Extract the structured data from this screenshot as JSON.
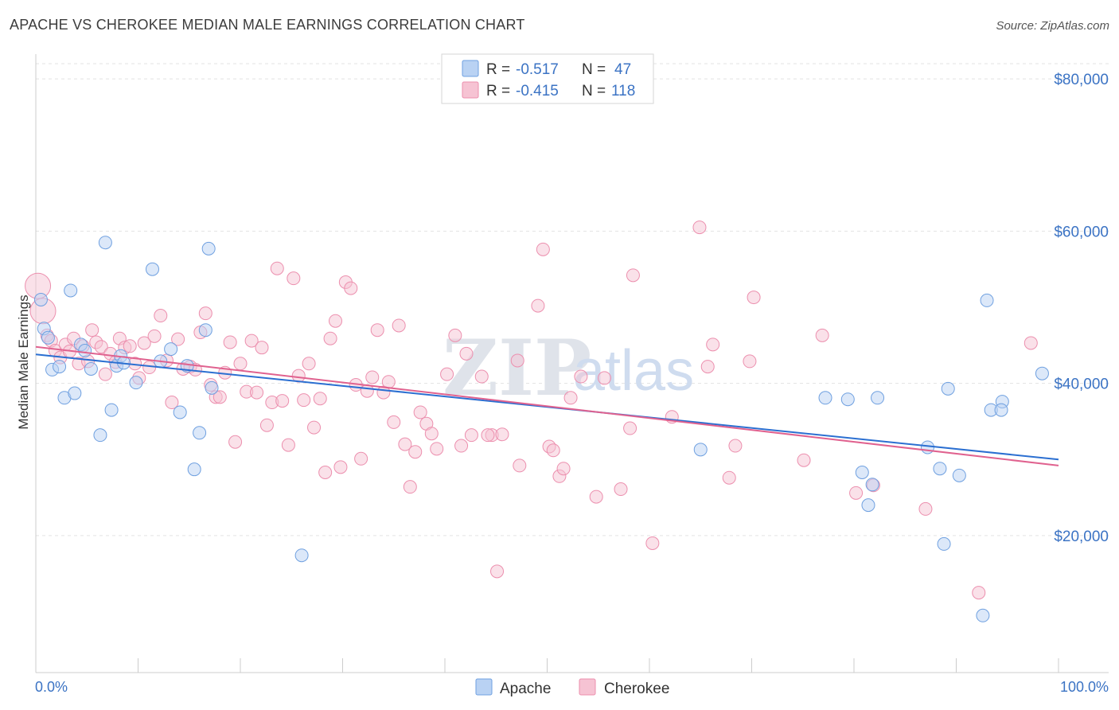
{
  "title": "APACHE VS CHEROKEE MEDIAN MALE EARNINGS CORRELATION CHART",
  "source": "Source: ZipAtlas.com",
  "watermark": {
    "part1": "ZIP",
    "part2": "atlas"
  },
  "colors": {
    "apache": "#6fa0e0",
    "apache_fill": "#b9d2f3",
    "apache_line": "#2b6fd1",
    "cherokee": "#ec8fae",
    "cherokee_fill": "#f6c3d3",
    "cherokee_line": "#e0628f",
    "tick": "#3b73c4"
  },
  "legend": {
    "rows": [
      {
        "r_label": "R =",
        "r_value": "-0.517",
        "n_label": "N =",
        "n_value": "47"
      },
      {
        "r_label": "R =",
        "r_value": "-0.415",
        "n_label": "N =",
        "n_value": "118"
      }
    ]
  },
  "bottom_legend": [
    "Apache",
    "Cherokee"
  ],
  "chart_data": {
    "type": "scatter",
    "title": "APACHE VS CHEROKEE MEDIAN MALE EARNINGS CORRELATION CHART",
    "xlabel": "",
    "ylabel": "Median Male Earnings",
    "xlim": [
      0,
      100
    ],
    "ylim": [
      2000,
      82000
    ],
    "x_tick_labels": [
      "0.0%",
      "100.0%"
    ],
    "y_ticks": [
      20000,
      40000,
      60000,
      80000
    ],
    "y_tick_labels": [
      "$20,000",
      "$40,000",
      "$60,000",
      "$80,000"
    ],
    "grid": true,
    "legend_position": "top-center",
    "series": [
      {
        "name": "Apache",
        "trend": {
          "x": [
            0,
            100
          ],
          "y": [
            43800,
            30000
          ]
        },
        "points": [
          [
            0.5,
            51000
          ],
          [
            0.8,
            47200
          ],
          [
            1.2,
            46000
          ],
          [
            1.6,
            41800
          ],
          [
            2.3,
            42200
          ],
          [
            2.8,
            38100
          ],
          [
            3.4,
            52200
          ],
          [
            3.8,
            38700
          ],
          [
            4.4,
            45100
          ],
          [
            4.8,
            44300
          ],
          [
            5.4,
            41900
          ],
          [
            6.3,
            33200
          ],
          [
            6.8,
            58500
          ],
          [
            7.4,
            36500
          ],
          [
            7.9,
            42300
          ],
          [
            8.3,
            43600
          ],
          [
            8.6,
            42700
          ],
          [
            9.8,
            40100
          ],
          [
            11.4,
            55000
          ],
          [
            12.2,
            42900
          ],
          [
            13.2,
            44500
          ],
          [
            14.1,
            36200
          ],
          [
            14.8,
            42300
          ],
          [
            15.5,
            28700
          ],
          [
            16.0,
            33500
          ],
          [
            16.6,
            47000
          ],
          [
            16.9,
            57700
          ],
          [
            17.2,
            39400
          ],
          [
            26.0,
            17400
          ],
          [
            65.0,
            31300
          ],
          [
            77.2,
            38100
          ],
          [
            79.4,
            37900
          ],
          [
            80.8,
            28300
          ],
          [
            81.4,
            24000
          ],
          [
            81.8,
            26700
          ],
          [
            82.3,
            38100
          ],
          [
            87.2,
            31600
          ],
          [
            88.4,
            28800
          ],
          [
            88.8,
            18900
          ],
          [
            89.2,
            39300
          ],
          [
            90.3,
            27900
          ],
          [
            92.6,
            9500
          ],
          [
            93.0,
            50900
          ],
          [
            93.4,
            36500
          ],
          [
            94.5,
            37600
          ],
          [
            98.4,
            41300
          ],
          [
            94.4,
            36500
          ]
        ]
      },
      {
        "name": "Cherokee",
        "trend": {
          "x": [
            0,
            100
          ],
          "y": [
            44800,
            29200
          ]
        },
        "points": [
          [
            0.2,
            52800
          ],
          [
            0.7,
            49500
          ],
          [
            1.1,
            46300
          ],
          [
            1.5,
            45600
          ],
          [
            1.9,
            44300
          ],
          [
            2.4,
            43400
          ],
          [
            2.9,
            45100
          ],
          [
            3.3,
            44200
          ],
          [
            3.7,
            45900
          ],
          [
            4.2,
            42600
          ],
          [
            4.6,
            44900
          ],
          [
            5.1,
            42900
          ],
          [
            5.5,
            47000
          ],
          [
            5.9,
            45400
          ],
          [
            6.4,
            44800
          ],
          [
            6.8,
            41200
          ],
          [
            7.3,
            43900
          ],
          [
            7.8,
            42800
          ],
          [
            8.2,
            45900
          ],
          [
            8.7,
            44700
          ],
          [
            9.2,
            44900
          ],
          [
            9.7,
            42600
          ],
          [
            10.1,
            40700
          ],
          [
            10.6,
            45300
          ],
          [
            11.1,
            42100
          ],
          [
            11.6,
            46200
          ],
          [
            12.2,
            48900
          ],
          [
            12.8,
            43000
          ],
          [
            13.3,
            37500
          ],
          [
            13.9,
            45800
          ],
          [
            14.4,
            41900
          ],
          [
            15.1,
            42200
          ],
          [
            15.6,
            41800
          ],
          [
            16.1,
            46700
          ],
          [
            16.6,
            49200
          ],
          [
            17.1,
            39800
          ],
          [
            17.6,
            38200
          ],
          [
            18.0,
            38200
          ],
          [
            18.5,
            41400
          ],
          [
            19.0,
            45400
          ],
          [
            19.5,
            32300
          ],
          [
            20.0,
            42600
          ],
          [
            20.6,
            38900
          ],
          [
            21.1,
            45600
          ],
          [
            21.6,
            38800
          ],
          [
            22.1,
            44700
          ],
          [
            22.6,
            34500
          ],
          [
            23.1,
            37500
          ],
          [
            23.6,
            55100
          ],
          [
            24.1,
            37700
          ],
          [
            24.7,
            31900
          ],
          [
            25.2,
            53800
          ],
          [
            25.7,
            41000
          ],
          [
            26.2,
            37800
          ],
          [
            26.7,
            42600
          ],
          [
            27.2,
            34200
          ],
          [
            27.8,
            38000
          ],
          [
            28.3,
            28300
          ],
          [
            28.8,
            45900
          ],
          [
            29.3,
            48200
          ],
          [
            29.8,
            29000
          ],
          [
            30.3,
            53300
          ],
          [
            30.8,
            52500
          ],
          [
            31.3,
            39800
          ],
          [
            31.8,
            30100
          ],
          [
            32.4,
            39000
          ],
          [
            32.9,
            40800
          ],
          [
            33.4,
            47000
          ],
          [
            34.0,
            38800
          ],
          [
            34.5,
            40200
          ],
          [
            35.0,
            34900
          ],
          [
            35.5,
            47600
          ],
          [
            36.1,
            32000
          ],
          [
            36.6,
            26400
          ],
          [
            37.1,
            31000
          ],
          [
            37.6,
            36200
          ],
          [
            38.2,
            34700
          ],
          [
            38.7,
            33400
          ],
          [
            39.2,
            31400
          ],
          [
            40.2,
            41200
          ],
          [
            41.0,
            46300
          ],
          [
            41.6,
            31800
          ],
          [
            42.1,
            43900
          ],
          [
            42.6,
            33200
          ],
          [
            43.6,
            40900
          ],
          [
            44.6,
            33200
          ],
          [
            45.1,
            15300
          ],
          [
            45.6,
            33300
          ],
          [
            47.1,
            43000
          ],
          [
            47.3,
            29200
          ],
          [
            49.1,
            50200
          ],
          [
            49.6,
            57600
          ],
          [
            50.2,
            31700
          ],
          [
            50.6,
            31200
          ],
          [
            51.2,
            27800
          ],
          [
            51.6,
            28800
          ],
          [
            52.3,
            38100
          ],
          [
            53.3,
            40900
          ],
          [
            54.8,
            25100
          ],
          [
            55.6,
            40700
          ],
          [
            57.2,
            26100
          ],
          [
            58.1,
            34100
          ],
          [
            58.4,
            54200
          ],
          [
            60.3,
            19000
          ],
          [
            62.2,
            35600
          ],
          [
            64.9,
            60500
          ],
          [
            65.7,
            42200
          ],
          [
            66.2,
            45100
          ],
          [
            67.8,
            27600
          ],
          [
            68.4,
            31800
          ],
          [
            69.8,
            42900
          ],
          [
            70.2,
            51300
          ],
          [
            75.1,
            29900
          ],
          [
            76.9,
            46300
          ],
          [
            80.2,
            25600
          ],
          [
            81.9,
            26600
          ],
          [
            87.0,
            23500
          ],
          [
            92.2,
            12500
          ],
          [
            97.3,
            45300
          ],
          [
            44.2,
            33200
          ]
        ]
      }
    ]
  }
}
